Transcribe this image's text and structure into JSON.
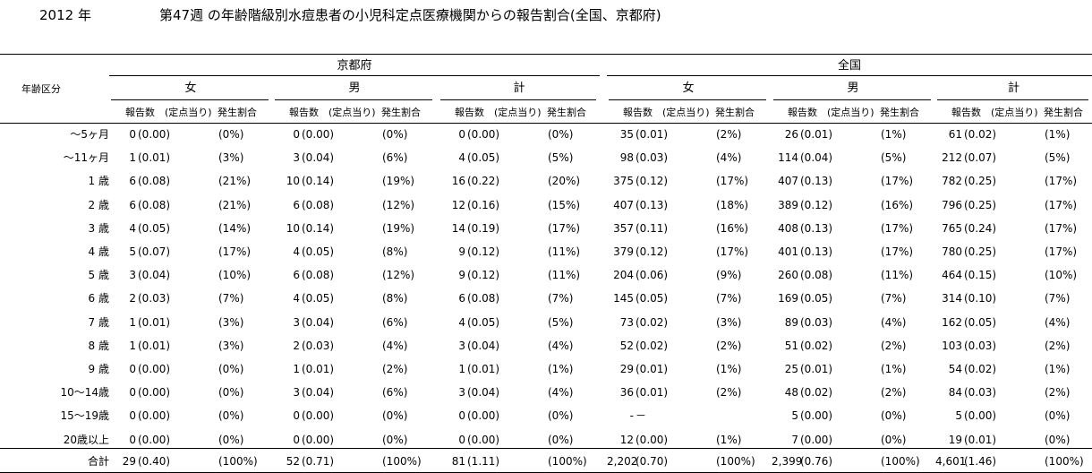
{
  "title": {
    "year": "2012 年",
    "text": "第47週 の年齢階級別水痘患者の小児科定点医療機関からの報告割合(全国、京都府)"
  },
  "header": {
    "age_label": "年齢区分",
    "regions": [
      "京都府",
      "全国"
    ],
    "sexes": [
      "女",
      "男",
      "計"
    ],
    "sub": [
      "報告数",
      "(定点当り)",
      "発生割合"
    ]
  },
  "rows": [
    {
      "age": "～5ヶ月",
      "cells": [
        [
          "0",
          "(0.00)",
          "(0%)"
        ],
        [
          "0",
          "(0.00)",
          "(0%)"
        ],
        [
          "0",
          "(0.00)",
          "(0%)"
        ],
        [
          "35",
          "(0.01)",
          "(2%)"
        ],
        [
          "26",
          "(0.01)",
          "(1%)"
        ],
        [
          "61",
          "(0.02)",
          "(1%)"
        ]
      ]
    },
    {
      "age": "～11ヶ月",
      "cells": [
        [
          "1",
          "(0.01)",
          "(3%)"
        ],
        [
          "3",
          "(0.04)",
          "(6%)"
        ],
        [
          "4",
          "(0.05)",
          "(5%)"
        ],
        [
          "98",
          "(0.03)",
          "(4%)"
        ],
        [
          "114",
          "(0.04)",
          "(5%)"
        ],
        [
          "212",
          "(0.07)",
          "(5%)"
        ]
      ]
    },
    {
      "age": "1 歳",
      "cells": [
        [
          "6",
          "(0.08)",
          "(21%)"
        ],
        [
          "10",
          "(0.14)",
          "(19%)"
        ],
        [
          "16",
          "(0.22)",
          "(20%)"
        ],
        [
          "375",
          "(0.12)",
          "(17%)"
        ],
        [
          "407",
          "(0.13)",
          "(17%)"
        ],
        [
          "782",
          "(0.25)",
          "(17%)"
        ]
      ]
    },
    {
      "age": "2 歳",
      "cells": [
        [
          "6",
          "(0.08)",
          "(21%)"
        ],
        [
          "6",
          "(0.08)",
          "(12%)"
        ],
        [
          "12",
          "(0.16)",
          "(15%)"
        ],
        [
          "407",
          "(0.13)",
          "(18%)"
        ],
        [
          "389",
          "(0.12)",
          "(16%)"
        ],
        [
          "796",
          "(0.25)",
          "(17%)"
        ]
      ]
    },
    {
      "age": "3 歳",
      "cells": [
        [
          "4",
          "(0.05)",
          "(14%)"
        ],
        [
          "10",
          "(0.14)",
          "(19%)"
        ],
        [
          "14",
          "(0.19)",
          "(17%)"
        ],
        [
          "357",
          "(0.11)",
          "(16%)"
        ],
        [
          "408",
          "(0.13)",
          "(17%)"
        ],
        [
          "765",
          "(0.24)",
          "(17%)"
        ]
      ]
    },
    {
      "age": "4 歳",
      "cells": [
        [
          "5",
          "(0.07)",
          "(17%)"
        ],
        [
          "4",
          "(0.05)",
          "(8%)"
        ],
        [
          "9",
          "(0.12)",
          "(11%)"
        ],
        [
          "379",
          "(0.12)",
          "(17%)"
        ],
        [
          "401",
          "(0.13)",
          "(17%)"
        ],
        [
          "780",
          "(0.25)",
          "(17%)"
        ]
      ]
    },
    {
      "age": "5 歳",
      "cells": [
        [
          "3",
          "(0.04)",
          "(10%)"
        ],
        [
          "6",
          "(0.08)",
          "(12%)"
        ],
        [
          "9",
          "(0.12)",
          "(11%)"
        ],
        [
          "204",
          "(0.06)",
          "(9%)"
        ],
        [
          "260",
          "(0.08)",
          "(11%)"
        ],
        [
          "464",
          "(0.15)",
          "(10%)"
        ]
      ]
    },
    {
      "age": "6 歳",
      "cells": [
        [
          "2",
          "(0.03)",
          "(7%)"
        ],
        [
          "4",
          "(0.05)",
          "(8%)"
        ],
        [
          "6",
          "(0.08)",
          "(7%)"
        ],
        [
          "145",
          "(0.05)",
          "(7%)"
        ],
        [
          "169",
          "(0.05)",
          "(7%)"
        ],
        [
          "314",
          "(0.10)",
          "(7%)"
        ]
      ]
    },
    {
      "age": "7 歳",
      "cells": [
        [
          "1",
          "(0.01)",
          "(3%)"
        ],
        [
          "3",
          "(0.04)",
          "(6%)"
        ],
        [
          "4",
          "(0.05)",
          "(5%)"
        ],
        [
          "73",
          "(0.02)",
          "(3%)"
        ],
        [
          "89",
          "(0.03)",
          "(4%)"
        ],
        [
          "162",
          "(0.05)",
          "(4%)"
        ]
      ]
    },
    {
      "age": "8 歳",
      "cells": [
        [
          "1",
          "(0.01)",
          "(3%)"
        ],
        [
          "2",
          "(0.03)",
          "(4%)"
        ],
        [
          "3",
          "(0.04)",
          "(4%)"
        ],
        [
          "52",
          "(0.02)",
          "(2%)"
        ],
        [
          "51",
          "(0.02)",
          "(2%)"
        ],
        [
          "103",
          "(0.03)",
          "(2%)"
        ]
      ]
    },
    {
      "age": "9 歳",
      "cells": [
        [
          "0",
          "(0.00)",
          "(0%)"
        ],
        [
          "1",
          "(0.01)",
          "(2%)"
        ],
        [
          "1",
          "(0.01)",
          "(1%)"
        ],
        [
          "29",
          "(0.01)",
          "(1%)"
        ],
        [
          "25",
          "(0.01)",
          "(1%)"
        ],
        [
          "54",
          "(0.02)",
          "(1%)"
        ]
      ]
    },
    {
      "age": "10～14歳",
      "cells": [
        [
          "0",
          "(0.00)",
          "(0%)"
        ],
        [
          "3",
          "(0.04)",
          "(6%)"
        ],
        [
          "3",
          "(0.04)",
          "(4%)"
        ],
        [
          "36",
          "(0.01)",
          "(2%)"
        ],
        [
          "48",
          "(0.02)",
          "(2%)"
        ],
        [
          "84",
          "(0.03)",
          "(2%)"
        ]
      ]
    },
    {
      "age": "15～19歳",
      "cells": [
        [
          "0",
          "(0.00)",
          "(0%)"
        ],
        [
          "0",
          "(0.00)",
          "(0%)"
        ],
        [
          "0",
          "(0.00)",
          "(0%)"
        ],
        [
          "-",
          "－",
          ""
        ],
        [
          "5",
          "(0.00)",
          "(0%)"
        ],
        [
          "5",
          "(0.00)",
          "(0%)"
        ]
      ]
    },
    {
      "age": "20歳以上",
      "cells": [
        [
          "0",
          "(0.00)",
          "(0%)"
        ],
        [
          "0",
          "(0.00)",
          "(0%)"
        ],
        [
          "0",
          "(0.00)",
          "(0%)"
        ],
        [
          "12",
          "(0.00)",
          "(1%)"
        ],
        [
          "7",
          "(0.00)",
          "(0%)"
        ],
        [
          "19",
          "(0.01)",
          "(0%)"
        ]
      ]
    }
  ],
  "total": {
    "age": "合計",
    "cells": [
      [
        "29",
        "(0.40)",
        "(100%)"
      ],
      [
        "52",
        "(0.71)",
        "(100%)"
      ],
      [
        "81",
        "(1.11)",
        "(100%)"
      ],
      [
        "2,202",
        "(0.70)",
        "(100%)"
      ],
      [
        "2,399",
        "(0.76)",
        "(100%)"
      ],
      [
        "4,601",
        "(1.46)",
        "(100%)"
      ]
    ]
  }
}
